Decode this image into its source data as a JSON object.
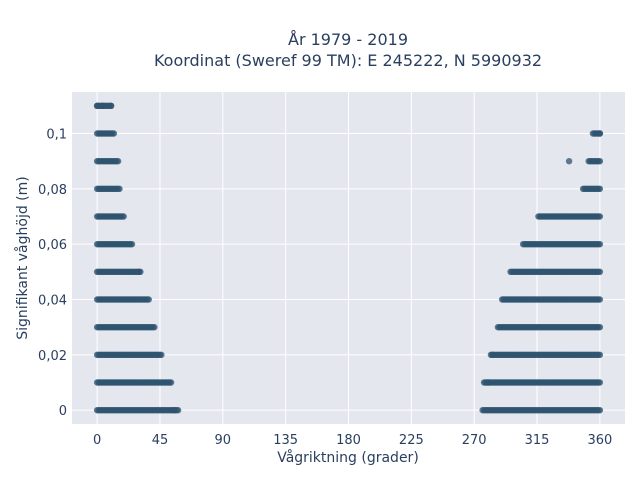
{
  "chart_data": {
    "type": "scatter",
    "title_line1": "År 1979 - 2019",
    "title_line2": "Koordinat (Sweref 99 TM): E 245222, N 5990932",
    "xlabel": "Vågriktning (grader)",
    "ylabel": "Signifikant våghöjd (m)",
    "xlim": [
      -18,
      378
    ],
    "ylim": [
      -0.005,
      0.115
    ],
    "x_ticks": [
      0,
      45,
      90,
      135,
      180,
      225,
      270,
      315,
      360
    ],
    "y_ticks": [
      {
        "value": 0,
        "label": "0"
      },
      {
        "value": 0.02,
        "label": "0,02"
      },
      {
        "value": 0.04,
        "label": "0,04"
      },
      {
        "value": 0.06,
        "label": "0,06"
      },
      {
        "value": 0.08,
        "label": "0,08"
      },
      {
        "value": 0.1,
        "label": "0,1"
      }
    ],
    "grid": true,
    "marker_color": "#2f5470",
    "plot_background": "#e5e7ef",
    "bands": [
      {
        "y": 0.0,
        "segments": [
          [
            0,
            58
          ],
          [
            276,
            360
          ]
        ]
      },
      {
        "y": 0.01,
        "segments": [
          [
            0,
            53
          ],
          [
            277,
            360
          ]
        ]
      },
      {
        "y": 0.02,
        "segments": [
          [
            0,
            46
          ],
          [
            282,
            360
          ]
        ]
      },
      {
        "y": 0.03,
        "segments": [
          [
            0,
            40
          ],
          [
            287,
            360
          ]
        ]
      },
      {
        "y": 0.04,
        "segments": [
          [
            0,
            36
          ],
          [
            290,
            360
          ]
        ]
      },
      {
        "y": 0.05,
        "segments": [
          [
            0,
            31
          ],
          [
            296,
            360
          ]
        ]
      },
      {
        "y": 0.06,
        "segments": [
          [
            0,
            24
          ],
          [
            305,
            360
          ]
        ]
      },
      {
        "y": 0.07,
        "segments": [
          [
            0,
            18
          ],
          [
            316,
            360
          ]
        ]
      },
      {
        "y": 0.08,
        "segments": [
          [
            0,
            16
          ],
          [
            348,
            360
          ]
        ]
      },
      {
        "y": 0.09,
        "segments": [
          [
            0,
            15
          ],
          [
            352,
            360
          ]
        ]
      },
      {
        "y": 0.1,
        "segments": [
          [
            0,
            12
          ],
          [
            356,
            360
          ]
        ]
      },
      {
        "y": 0.11,
        "segments": [
          [
            0,
            10
          ]
        ]
      }
    ],
    "isolated_points": [
      {
        "x": 19,
        "y": 0.07
      },
      {
        "x": 25,
        "y": 0.06
      },
      {
        "x": 30,
        "y": 0.05
      },
      {
        "x": 37,
        "y": 0.04
      },
      {
        "x": 41,
        "y": 0.03
      },
      {
        "x": 55,
        "y": 0.0
      },
      {
        "x": 280,
        "y": 0.01
      },
      {
        "x": 283,
        "y": 0.02
      },
      {
        "x": 338,
        "y": 0.09
      },
      {
        "x": 355,
        "y": 0.1
      },
      {
        "x": 0,
        "y": 0.11
      },
      {
        "x": 10,
        "y": 0.11
      },
      {
        "x": 4,
        "y": 0.11
      },
      {
        "x": 360,
        "y": 0.1
      }
    ]
  }
}
